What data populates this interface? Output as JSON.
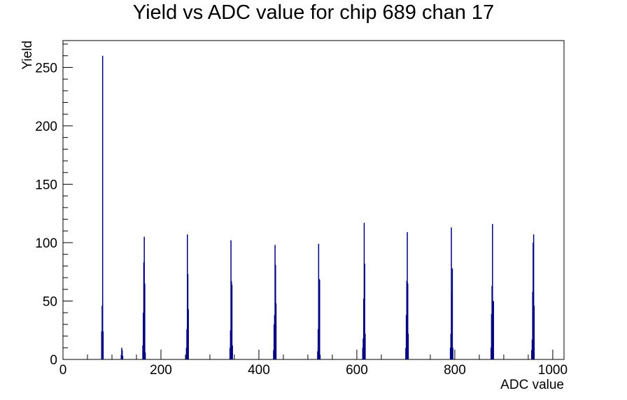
{
  "chart_data": {
    "type": "bar",
    "title": "Yield vs ADC value for chip 689 chan 17",
    "xlabel": "ADC value",
    "ylabel": "Yield",
    "xlim": [
      0,
      1023
    ],
    "ylim": [
      0,
      273
    ],
    "xticks": [
      0,
      200,
      400,
      600,
      800,
      1000
    ],
    "yticks": [
      0,
      50,
      100,
      150,
      200,
      250
    ],
    "grid": false,
    "line_color": "#000080",
    "x": [
      79,
      80,
      81,
      82,
      119,
      120,
      121,
      122,
      163,
      164,
      165,
      166,
      167,
      168,
      252,
      253,
      254,
      255,
      256,
      341,
      342,
      343,
      344,
      345,
      346,
      430,
      431,
      432,
      433,
      434,
      435,
      520,
      521,
      522,
      523,
      524,
      525,
      612,
      613,
      614,
      615,
      616,
      617,
      700,
      701,
      702,
      703,
      704,
      705,
      791,
      792,
      793,
      794,
      795,
      796,
      874,
      875,
      876,
      877,
      878,
      879,
      957,
      958,
      959,
      960,
      961,
      962
    ],
    "y": [
      24,
      46,
      260,
      24,
      4,
      10,
      8,
      3,
      12,
      40,
      83,
      105,
      65,
      6,
      10,
      26,
      107,
      73,
      43,
      10,
      25,
      102,
      67,
      64,
      12,
      8,
      30,
      38,
      98,
      81,
      48,
      7,
      26,
      99,
      69,
      68,
      4,
      10,
      18,
      52,
      117,
      82,
      22,
      10,
      38,
      67,
      109,
      65,
      22,
      10,
      22,
      113,
      56,
      78,
      10,
      10,
      39,
      63,
      116,
      38,
      50,
      8,
      17,
      58,
      100,
      107,
      46
    ]
  }
}
